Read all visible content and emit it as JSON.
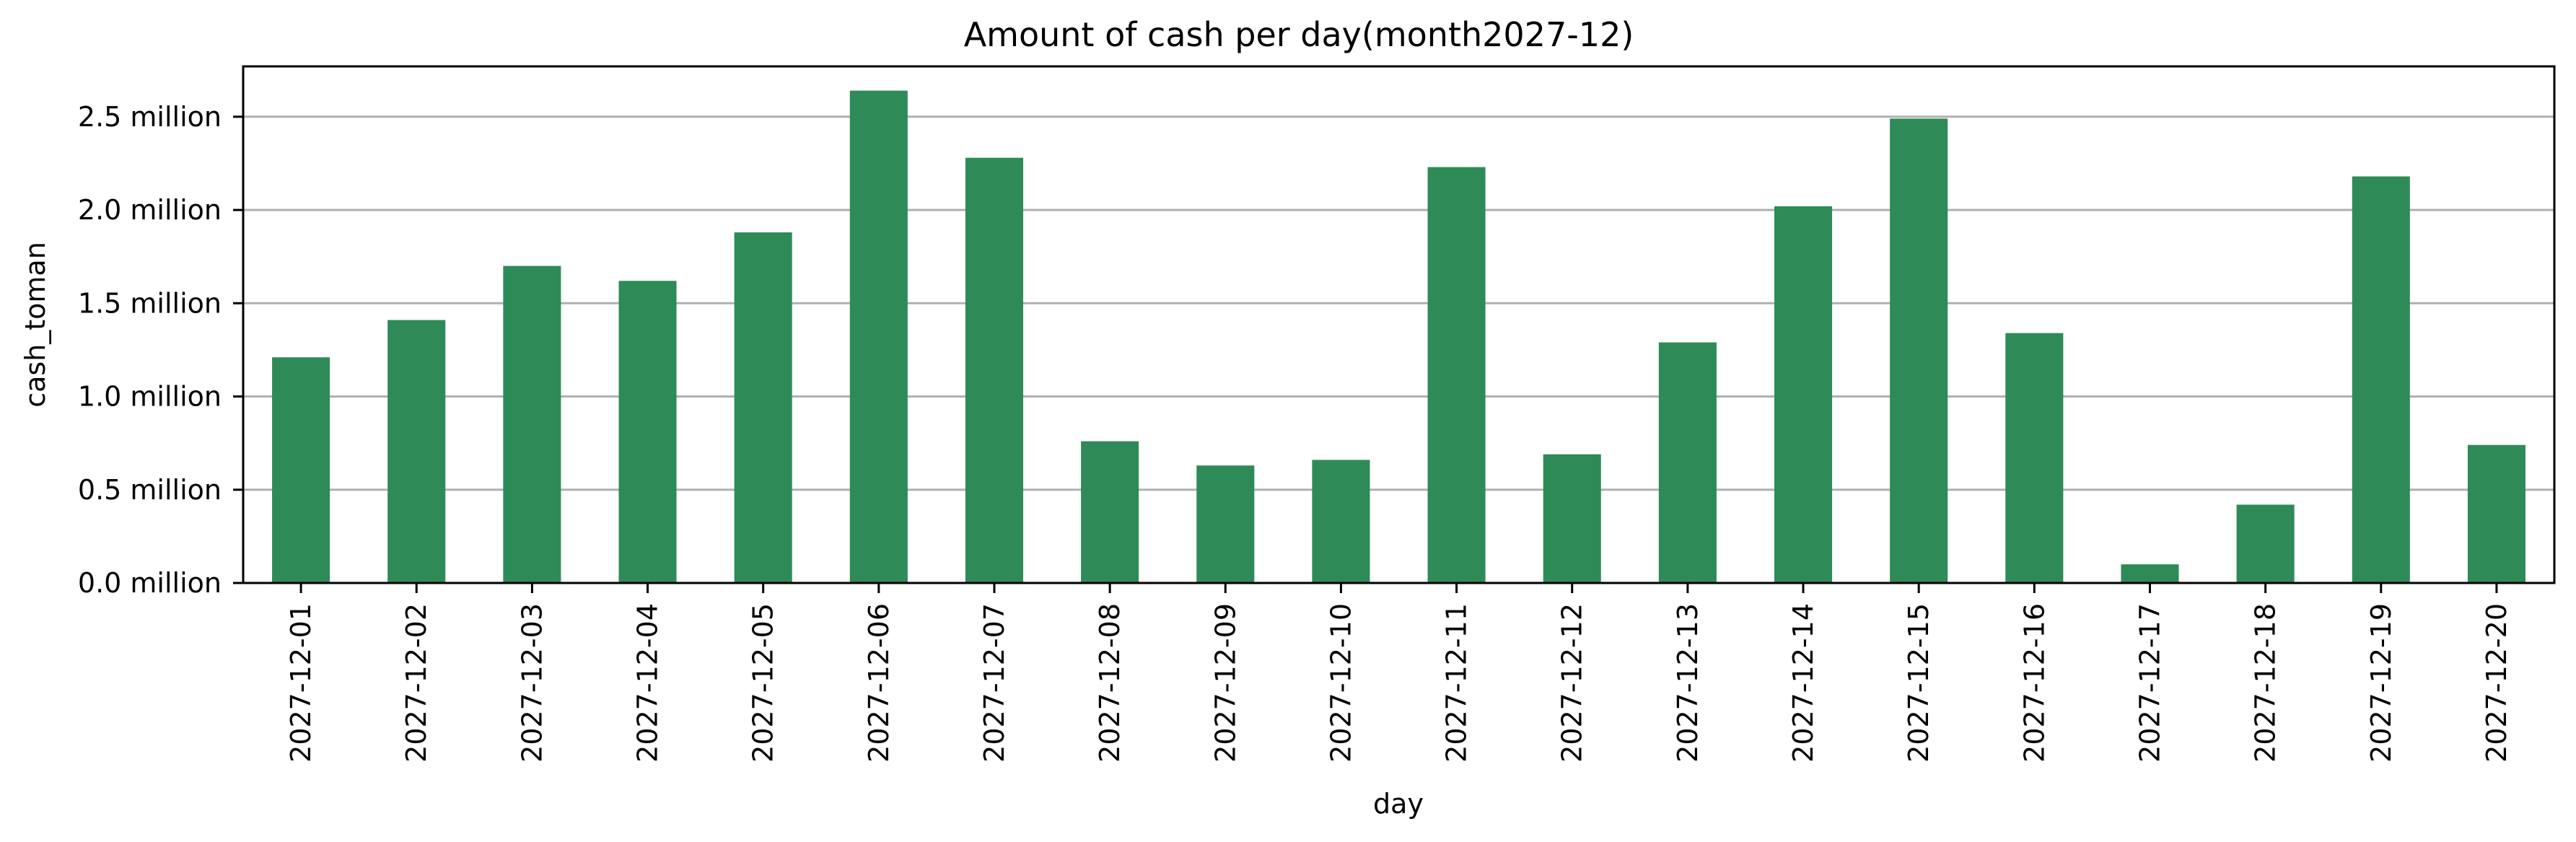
{
  "chart_data": {
    "type": "bar",
    "title": "Amount of cash per day(month2027-12)",
    "xlabel": "day",
    "ylabel": "cash_toman",
    "categories": [
      "2027-12-01",
      "2027-12-02",
      "2027-12-03",
      "2027-12-04",
      "2027-12-05",
      "2027-12-06",
      "2027-12-07",
      "2027-12-08",
      "2027-12-09",
      "2027-12-10",
      "2027-12-11",
      "2027-12-12",
      "2027-12-13",
      "2027-12-14",
      "2027-12-15",
      "2027-12-16",
      "2027-12-17",
      "2027-12-18",
      "2027-12-19",
      "2027-12-20"
    ],
    "values": [
      1210000,
      1410000,
      1700000,
      1620000,
      1880000,
      2640000,
      2280000,
      760000,
      630000,
      660000,
      2230000,
      690000,
      1290000,
      2020000,
      2490000,
      1340000,
      100000,
      420000,
      2180000,
      740000
    ],
    "ylim": [
      0,
      2770000
    ],
    "yticks": [
      0,
      500000,
      1000000,
      1500000,
      2000000,
      2500000
    ],
    "ytick_labels": [
      "0.0 million",
      "0.5 million",
      "1.0 million",
      "1.5 million",
      "2.0 million",
      "2.5 million"
    ],
    "grid": "horizontal",
    "bar_color": "#2e8b57"
  }
}
